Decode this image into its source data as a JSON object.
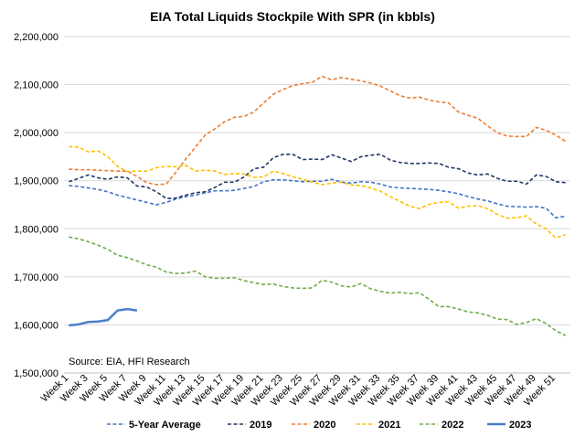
{
  "chart_data": {
    "type": "line",
    "title": "EIA Total Liquids Stockpile With SPR (in kbbls)",
    "source_note": "Source: EIA, HFI Research",
    "ylim": [
      1500000,
      2200000
    ],
    "yticks": [
      1500000,
      1600000,
      1700000,
      1800000,
      1900000,
      2000000,
      2100000,
      2200000
    ],
    "ytick_labels": [
      "1,500,000",
      "1,600,000",
      "1,700,000",
      "1,800,000",
      "1,900,000",
      "2,000,000",
      "2,100,000",
      "2,200,000"
    ],
    "xtick_labels": [
      "Week 1",
      "Week 3",
      "Week 5",
      "Week 7",
      "Week 9",
      "Week 11",
      "Week 13",
      "Week 15",
      "Week 17",
      "Week 19",
      "Week 21",
      "Week 23",
      "Week 25",
      "Week 27",
      "Week 29",
      "Week 31",
      "Week 33",
      "Week 35",
      "Week 37",
      "Week 39",
      "Week 41",
      "Week 43",
      "Week 45",
      "Week 47",
      "Week 49",
      "Week 51"
    ],
    "grid": true,
    "legend_position": "bottom",
    "series": [
      {
        "name": "5-Year Average",
        "color": "#4472c4",
        "style": "dashed",
        "values": [
          1890000,
          1888000,
          1885000,
          1882000,
          1877000,
          1870000,
          1865000,
          1860000,
          1855000,
          1850000,
          1855000,
          1862000,
          1867000,
          1870000,
          1875000,
          1879000,
          1879000,
          1880000,
          1884000,
          1888000,
          1898000,
          1902000,
          1902000,
          1900000,
          1898000,
          1899000,
          1899000,
          1903000,
          1897000,
          1895000,
          1898000,
          1897000,
          1893000,
          1887000,
          1885000,
          1884000,
          1883000,
          1882000,
          1880000,
          1877000,
          1873000,
          1867000,
          1862000,
          1858000,
          1852000,
          1847000,
          1846000,
          1845000,
          1846000,
          1843000,
          1823000,
          1826000
        ]
      },
      {
        "name": "2019",
        "color": "#203864",
        "style": "dashed",
        "values": [
          1898000,
          1905000,
          1912000,
          1906000,
          1903000,
          1908000,
          1906000,
          1889000,
          1887000,
          1877000,
          1863000,
          1864000,
          1870000,
          1875000,
          1877000,
          1886000,
          1897000,
          1897000,
          1908000,
          1925000,
          1928000,
          1948000,
          1955000,
          1955000,
          1944000,
          1945000,
          1944000,
          1954000,
          1947000,
          1940000,
          1950000,
          1953000,
          1955000,
          1943000,
          1938000,
          1936000,
          1936000,
          1937000,
          1936000,
          1928000,
          1925000,
          1916000,
          1912000,
          1914000,
          1905000,
          1899000,
          1899000,
          1893000,
          1912000,
          1909000,
          1898000,
          1896000
        ]
      },
      {
        "name": "2020",
        "color": "#ed7d31",
        "style": "dashed",
        "values": [
          1924000,
          1923000,
          1923000,
          1922000,
          1921000,
          1920000,
          1920000,
          1909000,
          1896000,
          1892000,
          1893000,
          1918000,
          1945000,
          1970000,
          1995000,
          2008000,
          2023000,
          2032000,
          2034000,
          2043000,
          2062000,
          2080000,
          2090000,
          2098000,
          2102000,
          2105000,
          2117000,
          2110000,
          2115000,
          2111000,
          2108000,
          2103000,
          2097000,
          2087000,
          2077000,
          2072000,
          2074000,
          2068000,
          2064000,
          2062000,
          2043000,
          2036000,
          2030000,
          2014000,
          2000000,
          1993000,
          1992000,
          1992000,
          2011000,
          2005000,
          1995000,
          1982000
        ]
      },
      {
        "name": "2021",
        "color": "#ffc000",
        "style": "dashed",
        "values": [
          1971000,
          1970000,
          1960000,
          1962000,
          1950000,
          1930000,
          1919000,
          1920000,
          1920000,
          1927000,
          1930000,
          1929000,
          1932000,
          1920000,
          1922000,
          1920000,
          1913000,
          1915000,
          1914000,
          1907000,
          1908000,
          1920000,
          1915000,
          1908000,
          1903000,
          1897000,
          1892000,
          1895000,
          1897000,
          1891000,
          1890000,
          1885000,
          1878000,
          1867000,
          1857000,
          1847000,
          1842000,
          1851000,
          1855000,
          1856000,
          1843000,
          1847000,
          1848000,
          1842000,
          1830000,
          1822000,
          1823000,
          1827000,
          1810000,
          1800000,
          1781000,
          1788000
        ]
      },
      {
        "name": "2022",
        "color": "#70ad47",
        "style": "dashed",
        "values": [
          1783000,
          1779000,
          1773000,
          1766000,
          1757000,
          1745000,
          1740000,
          1733000,
          1725000,
          1720000,
          1710000,
          1707000,
          1708000,
          1712000,
          1700000,
          1697000,
          1697000,
          1698000,
          1692000,
          1688000,
          1684000,
          1685000,
          1680000,
          1677000,
          1676000,
          1677000,
          1693000,
          1689000,
          1681000,
          1679000,
          1686000,
          1675000,
          1670000,
          1666000,
          1668000,
          1665000,
          1667000,
          1653000,
          1638000,
          1638000,
          1633000,
          1627000,
          1625000,
          1620000,
          1612000,
          1611000,
          1601000,
          1605000,
          1613000,
          1603000,
          1588000,
          1578000
        ]
      },
      {
        "name": "2023",
        "color": "#4a7fc9",
        "style": "solid",
        "values": [
          1599000,
          1601000,
          1606000,
          1607000,
          1610000,
          1630000,
          1633000,
          1630000
        ]
      }
    ]
  }
}
